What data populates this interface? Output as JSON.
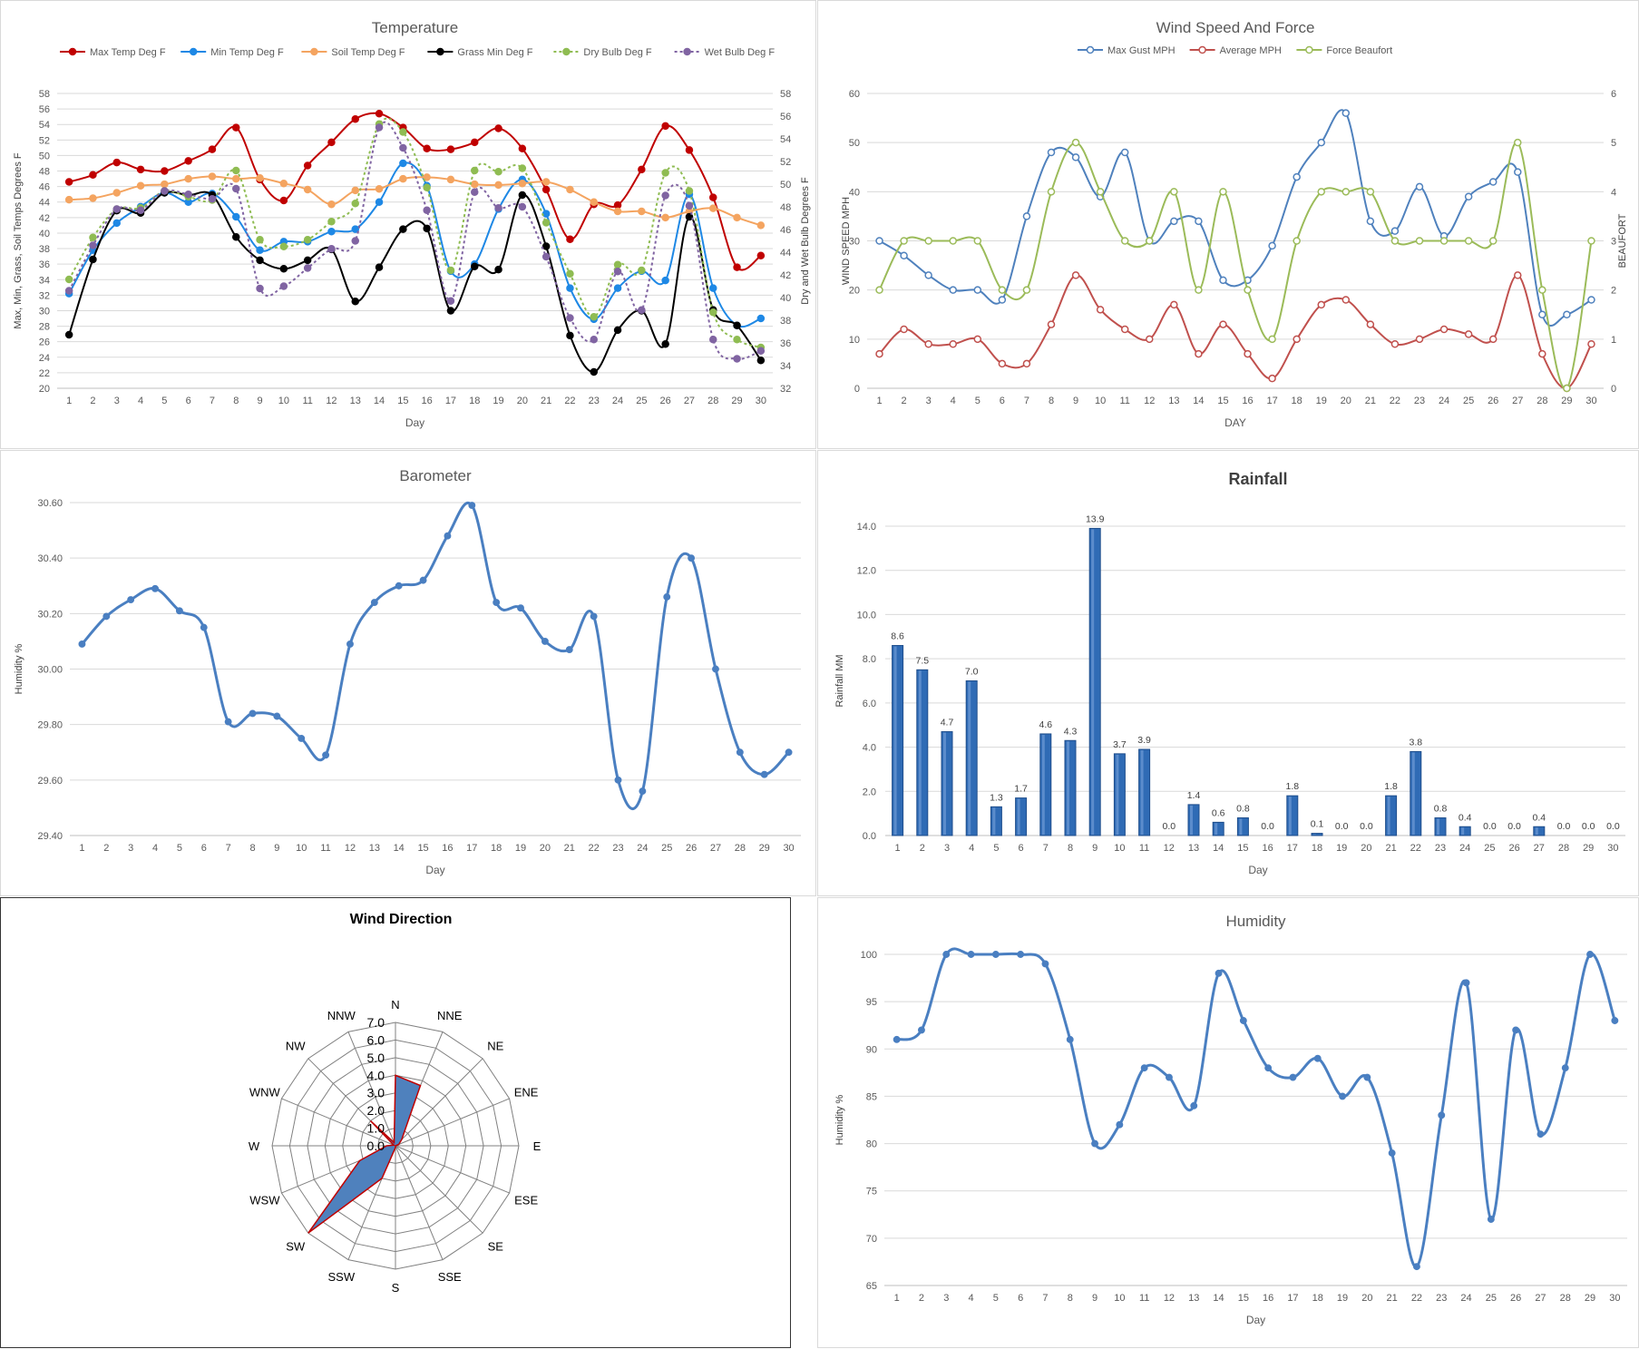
{
  "chart_data": [
    {
      "id": "temperature",
      "type": "line",
      "title": "Temperature",
      "xlabel": "Day",
      "ylabel": "Max, Min, Grass, Soil Temps Degrees F",
      "y2label": "Dry and Wet Bulb Degrees F",
      "x": [
        1,
        2,
        3,
        4,
        5,
        6,
        7,
        8,
        9,
        10,
        11,
        12,
        13,
        14,
        15,
        16,
        17,
        18,
        19,
        20,
        21,
        22,
        23,
        24,
        25,
        26,
        27,
        28,
        29,
        30
      ],
      "ylim": [
        20,
        58
      ],
      "yticks": [
        20,
        22,
        24,
        26,
        28,
        30,
        32,
        34,
        36,
        38,
        40,
        42,
        44,
        46,
        48,
        50,
        52,
        54,
        56,
        58
      ],
      "y2lim": [
        32,
        58
      ],
      "y2ticks": [
        32,
        34,
        36,
        38,
        40,
        42,
        44,
        46,
        48,
        50,
        52,
        54,
        56,
        58
      ],
      "legend": "top",
      "grid": true,
      "series": [
        {
          "name": "Max Temp Deg F",
          "axis": "left",
          "color": "#c00000",
          "dash": false,
          "values": [
            46.6,
            47.5,
            49.1,
            48.2,
            48.0,
            49.3,
            50.8,
            53.6,
            46.9,
            44.2,
            48.7,
            51.7,
            54.7,
            55.4,
            53.6,
            50.9,
            50.8,
            51.7,
            53.5,
            50.9,
            45.6,
            39.2,
            43.7,
            43.6,
            48.2,
            53.8,
            50.7,
            44.6,
            35.6,
            37.1
          ]
        },
        {
          "name": "Min Temp Deg F",
          "axis": "left",
          "color": "#1e88e5",
          "dash": false,
          "values": [
            32.2,
            37.8,
            41.3,
            43.4,
            45.2,
            44.0,
            45.1,
            42.1,
            37.8,
            38.9,
            38.9,
            40.2,
            40.5,
            44.0,
            49.0,
            46.1,
            35.1,
            36.0,
            43.1,
            46.9,
            42.5,
            32.9,
            28.9,
            32.9,
            35.1,
            33.9,
            45.0,
            32.9,
            28.1,
            29.0
          ]
        },
        {
          "name": "Soil Temp Deg F",
          "axis": "left",
          "color": "#f4a460",
          "dash": false,
          "values": [
            44.3,
            44.5,
            45.2,
            46.1,
            46.3,
            47.0,
            47.3,
            47.0,
            47.1,
            46.4,
            45.6,
            43.7,
            45.5,
            45.7,
            47.0,
            47.2,
            46.9,
            46.3,
            46.2,
            46.4,
            46.6,
            45.6,
            44.0,
            42.8,
            42.8,
            42.0,
            42.8,
            43.2,
            42.0,
            41.0
          ]
        },
        {
          "name": "Grass Min Deg F",
          "axis": "left",
          "color": "#000000",
          "dash": false,
          "values": [
            26.9,
            36.6,
            42.9,
            42.6,
            45.2,
            44.9,
            44.9,
            39.5,
            36.5,
            35.4,
            36.5,
            37.9,
            31.2,
            35.6,
            40.5,
            40.6,
            30.0,
            35.7,
            35.3,
            44.9,
            38.3,
            26.8,
            22.1,
            27.5,
            30.0,
            25.7,
            42.1,
            30.1,
            28.1,
            23.6
          ]
        },
        {
          "name": "Dry Bulb Deg F",
          "axis": "right",
          "color": "#8fbc52",
          "dash": true,
          "values": [
            41.6,
            45.3,
            47.8,
            47.9,
            49.4,
            48.9,
            48.6,
            51.2,
            45.1,
            44.5,
            45.1,
            46.7,
            48.3,
            55.3,
            54.6,
            49.7,
            42.4,
            51.2,
            51.1,
            51.4,
            46.6,
            42.1,
            38.3,
            42.9,
            42.4,
            51.0,
            49.4,
            38.7,
            36.3,
            35.6
          ]
        },
        {
          "name": "Wet Bulb Deg F",
          "axis": "right",
          "color": "#8064a2",
          "dash": true,
          "values": [
            40.6,
            44.6,
            47.8,
            47.7,
            49.4,
            49.1,
            48.7,
            49.6,
            40.8,
            41.0,
            42.6,
            44.3,
            45.0,
            55.0,
            53.2,
            47.7,
            39.7,
            49.3,
            47.9,
            48.0,
            43.6,
            38.2,
            36.3,
            42.3,
            38.9,
            49.0,
            48.1,
            36.3,
            34.6,
            35.3
          ]
        }
      ]
    },
    {
      "id": "wind",
      "type": "line",
      "title": "Wind Speed And Force",
      "xlabel": "DAY",
      "ylabel": "WIND SPEED MPH",
      "y2label": "BEAUFORT",
      "x": [
        1,
        2,
        3,
        4,
        5,
        6,
        7,
        8,
        9,
        10,
        11,
        12,
        13,
        14,
        15,
        16,
        17,
        18,
        19,
        20,
        21,
        22,
        23,
        24,
        25,
        26,
        27,
        28,
        29,
        30
      ],
      "ylim": [
        0,
        60
      ],
      "yticks": [
        0,
        10,
        20,
        30,
        40,
        50,
        60
      ],
      "y2lim": [
        0,
        6
      ],
      "y2ticks": [
        0,
        1,
        2,
        3,
        4,
        5,
        6
      ],
      "legend": "top",
      "grid": true,
      "series": [
        {
          "name": "Max Gust MPH",
          "axis": "left",
          "color": "#4f81bd",
          "values": [
            30,
            27,
            23,
            20,
            20,
            18,
            35,
            48,
            47,
            39,
            48,
            30,
            34,
            34,
            22,
            22,
            29,
            43,
            50,
            56,
            34,
            32,
            41,
            31,
            39,
            42,
            44,
            15,
            15,
            18
          ]
        },
        {
          "name": "Average MPH",
          "axis": "left",
          "color": "#c0504d",
          "values": [
            7,
            12,
            9,
            9,
            10,
            5,
            5,
            13,
            23,
            16,
            12,
            10,
            17,
            7,
            13,
            7,
            2,
            10,
            17,
            18,
            13,
            9,
            10,
            12,
            11,
            10,
            23,
            7,
            0,
            9
          ]
        },
        {
          "name": "Force Beaufort",
          "axis": "right",
          "color": "#9bbb59",
          "values": [
            2,
            3,
            3,
            3,
            3,
            2,
            2,
            4,
            5,
            4,
            3,
            3,
            4,
            2,
            4,
            2,
            1,
            3,
            4,
            4,
            4,
            3,
            3,
            3,
            3,
            3,
            5,
            2,
            0,
            3
          ]
        }
      ]
    },
    {
      "id": "barometer",
      "type": "line",
      "title": "Barometer",
      "xlabel": "Day",
      "ylabel": "Humidity %",
      "x": [
        1,
        2,
        3,
        4,
        5,
        6,
        7,
        8,
        9,
        10,
        11,
        12,
        13,
        14,
        15,
        16,
        17,
        18,
        19,
        20,
        21,
        22,
        23,
        24,
        25,
        26,
        27,
        28,
        29,
        30
      ],
      "ylim": [
        29.4,
        30.6
      ],
      "yticks": [
        "29.40",
        "29.60",
        "29.80",
        "30.00",
        "30.20",
        "30.40",
        "30.60"
      ],
      "legend": "none",
      "grid": true,
      "series": [
        {
          "name": "",
          "color": "#4a7fc1",
          "values": [
            30.09,
            30.19,
            30.25,
            30.29,
            30.21,
            30.15,
            29.81,
            29.84,
            29.83,
            29.75,
            29.69,
            30.09,
            30.24,
            30.3,
            30.32,
            30.48,
            30.59,
            30.24,
            30.22,
            30.1,
            30.07,
            30.19,
            29.6,
            29.56,
            30.26,
            30.4,
            30.0,
            29.7,
            29.62,
            29.7
          ]
        }
      ]
    },
    {
      "id": "rainfall",
      "type": "bar",
      "title": "Rainfall",
      "xlabel": "Day",
      "ylabel": "Rainfall MM",
      "categories": [
        "1",
        "2",
        "3",
        "4",
        "5",
        "6",
        "7",
        "8",
        "9",
        "10",
        "11",
        "12",
        "13",
        "14",
        "15",
        "16",
        "17",
        "18",
        "19",
        "20",
        "21",
        "22",
        "23",
        "24",
        "25",
        "26",
        "27",
        "28",
        "29",
        "30"
      ],
      "values": [
        8.6,
        7.5,
        4.7,
        7.0,
        1.3,
        1.7,
        4.6,
        4.3,
        13.9,
        3.7,
        3.9,
        0.0,
        1.4,
        0.6,
        0.8,
        0.0,
        1.8,
        0.1,
        0.0,
        0.0,
        1.8,
        3.8,
        0.8,
        0.4,
        0.0,
        0.0,
        0.4,
        0.0,
        0.0,
        0.0
      ],
      "data_labels": [
        "8.6",
        "7.5",
        "4.7",
        "7.0",
        "1.3",
        "1.7",
        "4.6",
        "4.3",
        "13.9",
        "3.7",
        "3.9",
        "0.0",
        "1.4",
        "0.6",
        "0.8",
        "0.0",
        "1.8",
        "0.1",
        "0.0",
        "0.0",
        "1.8",
        "3.8",
        "0.8",
        "0.4",
        "0.0",
        "0.0",
        "0.4",
        "0.0",
        "0.0",
        "0.0"
      ],
      "ylim": [
        0,
        14
      ],
      "yticks": [
        "0.0",
        "2.0",
        "4.0",
        "6.0",
        "8.0",
        "10.0",
        "12.0",
        "14.0"
      ],
      "grid": true,
      "color": "#2f6bb5"
    },
    {
      "id": "wind_direction",
      "type": "radar",
      "title": "Wind Direction",
      "categories": [
        "N",
        "NNE",
        "NE",
        "ENE",
        "E",
        "ESE",
        "SE",
        "SSE",
        "S",
        "SSW",
        "SW",
        "WSW",
        "W",
        "WNW",
        "NW",
        "NNW"
      ],
      "values": [
        4.0,
        3.7,
        0.5,
        0.2,
        0.0,
        0.0,
        0.0,
        0.0,
        0.1,
        2.0,
        7.0,
        2.2,
        0.5,
        0.1,
        2.0,
        0.2
      ],
      "rlim": [
        0,
        7
      ],
      "rticks": [
        "0.0",
        "1.0",
        "2.0",
        "3.0",
        "4.0",
        "5.0",
        "6.0",
        "7.0"
      ],
      "fill": "#4f81bd",
      "stroke": "#c00000"
    },
    {
      "id": "humidity",
      "type": "line",
      "title": "Humidity",
      "xlabel": "Day",
      "ylabel": "Humidity %",
      "x": [
        1,
        2,
        3,
        4,
        5,
        6,
        7,
        8,
        9,
        10,
        11,
        12,
        13,
        14,
        15,
        16,
        17,
        18,
        19,
        20,
        21,
        22,
        23,
        24,
        25,
        26,
        27,
        28,
        29,
        30
      ],
      "ylim": [
        65,
        100
      ],
      "yticks": [
        65,
        70,
        75,
        80,
        85,
        90,
        95,
        100
      ],
      "legend": "none",
      "grid": true,
      "series": [
        {
          "name": "",
          "color": "#4a7fc1",
          "values": [
            91,
            92,
            100,
            100,
            100,
            100,
            99,
            91,
            80,
            82,
            88,
            87,
            84,
            98,
            93,
            88,
            87,
            89,
            85,
            87,
            79,
            67,
            83,
            97,
            72,
            92,
            81,
            88,
            100,
            93
          ]
        }
      ]
    }
  ]
}
